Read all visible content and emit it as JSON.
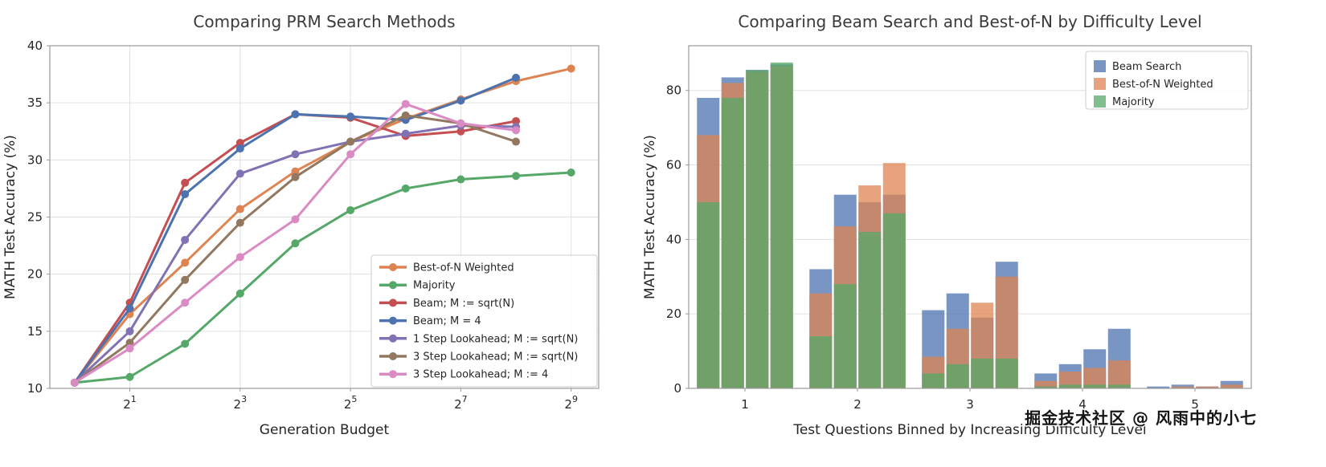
{
  "watermark": "掘金技术社区 @ 风雨中的小七",
  "chart_data": [
    {
      "type": "line",
      "title": "Comparing PRM Search Methods",
      "xlabel": "Generation Budget",
      "ylabel": "MATH Test Accuracy (%)",
      "x_scale": "log2",
      "x_tick_exponents": [
        1,
        3,
        5,
        7,
        9
      ],
      "ylim": [
        10,
        40
      ],
      "y_ticks": [
        10,
        15,
        20,
        25,
        30,
        35,
        40
      ],
      "grid": true,
      "legend_position": "lower right",
      "series": [
        {
          "name": "Best-of-N Weighted",
          "color": "#DD8452",
          "x_exponents": [
            0,
            1,
            2,
            3,
            4,
            5,
            6,
            7,
            8,
            9
          ],
          "y": [
            10.5,
            16.5,
            21.0,
            25.7,
            29.0,
            31.6,
            33.6,
            35.3,
            36.9,
            38.0
          ]
        },
        {
          "name": "Majority",
          "color": "#55A868",
          "x_exponents": [
            0,
            1,
            2,
            3,
            4,
            5,
            6,
            7,
            8,
            9
          ],
          "y": [
            10.5,
            11.0,
            13.9,
            18.3,
            22.7,
            25.6,
            27.5,
            28.3,
            28.6,
            28.9
          ]
        },
        {
          "name": "Beam; M := sqrt(N)",
          "color": "#C44E52",
          "x_exponents": [
            0,
            1,
            2,
            3,
            4,
            5,
            6,
            7,
            8
          ],
          "y": [
            10.5,
            17.5,
            28.0,
            31.5,
            34.0,
            33.7,
            32.1,
            32.5,
            33.4
          ]
        },
        {
          "name": "Beam; M = 4",
          "color": "#4C72B0",
          "x_exponents": [
            0,
            1,
            2,
            3,
            4,
            5,
            6,
            7,
            8
          ],
          "y": [
            10.5,
            17.0,
            27.0,
            31.0,
            34.0,
            33.8,
            33.5,
            35.2,
            37.2
          ]
        },
        {
          "name": "1 Step Lookahead; M := sqrt(N)",
          "color": "#8172B3",
          "x_exponents": [
            0,
            1,
            2,
            3,
            4,
            5,
            6,
            7,
            8
          ],
          "y": [
            10.5,
            15.0,
            23.0,
            28.8,
            30.5,
            31.6,
            32.3,
            33.0,
            32.9
          ]
        },
        {
          "name": "3 Step Lookahead; M := sqrt(N)",
          "color": "#937860",
          "x_exponents": [
            0,
            1,
            2,
            3,
            4,
            5,
            6,
            7,
            8
          ],
          "y": [
            10.5,
            14.0,
            19.5,
            24.5,
            28.5,
            31.6,
            33.9,
            33.2,
            31.6
          ]
        },
        {
          "name": "3 Step Lookahead; M := 4",
          "color": "#DA8BC3",
          "x_exponents": [
            0,
            1,
            2,
            3,
            4,
            5,
            6,
            7,
            8
          ],
          "y": [
            10.5,
            13.5,
            17.5,
            21.5,
            24.8,
            30.5,
            34.9,
            33.2,
            32.6
          ]
        }
      ]
    },
    {
      "type": "bar",
      "title": "Comparing Beam Search and Best-of-N by Difficulty Level",
      "xlabel": "Test Questions Binned by Increasing Difficulty Level",
      "ylabel": "MATH Test Accuracy (%)",
      "categories": [
        "1",
        "2",
        "3",
        "4",
        "5"
      ],
      "y_ticks": [
        0,
        20,
        40,
        60,
        80
      ],
      "ylim": [
        0,
        92
      ],
      "bar_alpha": 0.75,
      "clusters_per_category": 4,
      "legend_position": "upper right",
      "series": [
        {
          "name": "Beam Search",
          "color": "#4C72B0",
          "values": [
            [
              78,
              83.5,
              85.5,
              87
            ],
            [
              32,
              52,
              50,
              52
            ],
            [
              21,
              25.5,
              19,
              34
            ],
            [
              4,
              6.5,
              10.5,
              16
            ],
            [
              0.5,
              1,
              0.5,
              2
            ]
          ]
        },
        {
          "name": "Best-of-N Weighted",
          "color": "#DD8452",
          "values": [
            [
              68,
              82,
              85,
              86.5
            ],
            [
              25.5,
              43.5,
              54.5,
              60.5
            ],
            [
              8.5,
              16,
              23,
              30
            ],
            [
              2,
              4.5,
              5.5,
              7.5
            ],
            [
              0,
              0.5,
              0.5,
              1
            ]
          ]
        },
        {
          "name": "Majority",
          "color": "#55A868",
          "values": [
            [
              50,
              78,
              85.5,
              87.5
            ],
            [
              14,
              28,
              42,
              47
            ],
            [
              4,
              6.5,
              8,
              8
            ],
            [
              0.5,
              1,
              1,
              1
            ],
            [
              0,
              0,
              0,
              0
            ]
          ]
        }
      ]
    }
  ]
}
